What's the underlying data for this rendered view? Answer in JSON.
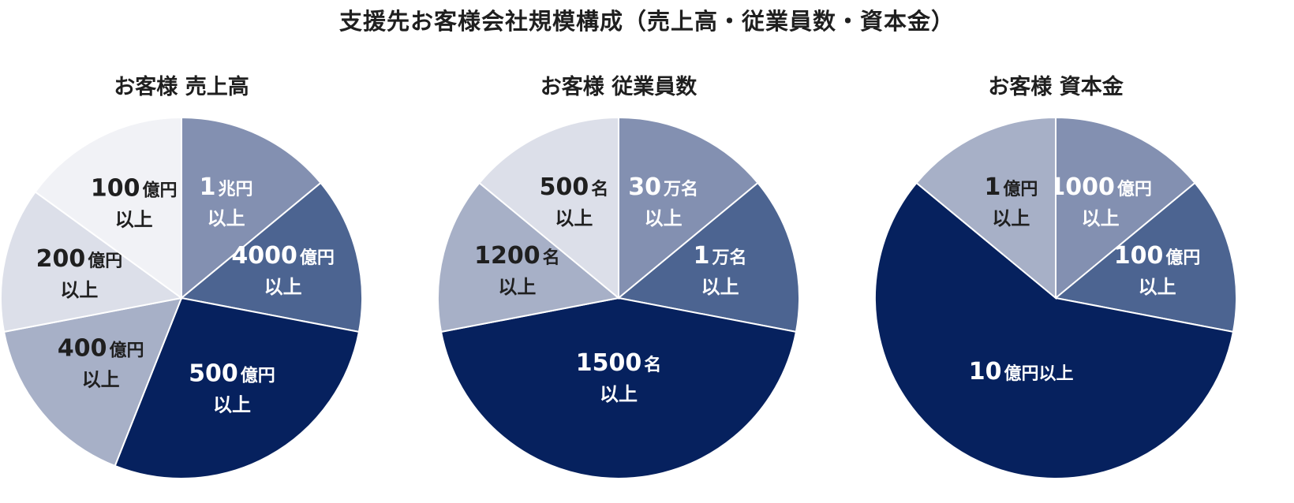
{
  "page_title": "支援先お客様会社規模構成（売上高・従業員数・資本金）",
  "chart_data": [
    {
      "type": "pie",
      "title": "お客様 売上高",
      "start_angle_deg": 0,
      "slices": [
        {
          "label": "1兆円以上",
          "num": "1",
          "unit": "兆円",
          "sub": "以上",
          "value": 14,
          "color": "#8390b1",
          "text_color": "#ffffff"
        },
        {
          "label": "4000億円以上",
          "num": "4000",
          "unit": "億円",
          "sub": "以上",
          "value": 14,
          "color": "#4c6491",
          "text_color": "#ffffff"
        },
        {
          "label": "500億円以上",
          "num": "500",
          "unit": "億円",
          "sub": "以上",
          "value": 28,
          "color": "#06215e",
          "text_color": "#ffffff"
        },
        {
          "label": "400億円以上",
          "num": "400",
          "unit": "億円",
          "sub": "以上",
          "value": 16,
          "color": "#a7b0c7",
          "text_color": "#1f1f1f"
        },
        {
          "label": "200億円以上",
          "num": "200",
          "unit": "億円",
          "sub": "以上",
          "value": 13,
          "color": "#dcdfe9",
          "text_color": "#1f1f1f"
        },
        {
          "label": "100億円以上",
          "num": "100",
          "unit": "億円",
          "sub": "以上",
          "value": 15,
          "color": "#f1f2f6",
          "text_color": "#1f1f1f"
        }
      ]
    },
    {
      "type": "pie",
      "title": "お客様 従業員数",
      "start_angle_deg": 0,
      "slices": [
        {
          "label": "30万名以上",
          "num": "30",
          "unit": "万名",
          "sub": "以上",
          "value": 14,
          "color": "#8390b1",
          "text_color": "#ffffff"
        },
        {
          "label": "1万名以上",
          "num": "1",
          "unit": "万名",
          "sub": "以上",
          "value": 14,
          "color": "#4c6491",
          "text_color": "#ffffff"
        },
        {
          "label": "1500名以上",
          "num": "1500",
          "unit": "名",
          "sub": "以上",
          "value": 44,
          "color": "#06215e",
          "text_color": "#ffffff"
        },
        {
          "label": "1200名以上",
          "num": "1200",
          "unit": "名",
          "sub": "以上",
          "value": 14,
          "color": "#a7b0c7",
          "text_color": "#1f1f1f"
        },
        {
          "label": "500名以上",
          "num": "500",
          "unit": "名",
          "sub": "以上",
          "value": 14,
          "color": "#dcdfe9",
          "text_color": "#1f1f1f"
        }
      ]
    },
    {
      "type": "pie",
      "title": "お客様 資本金",
      "start_angle_deg": 0,
      "slices": [
        {
          "label": "1000億円以上",
          "num": "1000",
          "unit": "億円",
          "sub": "以上",
          "value": 14,
          "color": "#8390b1",
          "text_color": "#ffffff"
        },
        {
          "label": "100億円以上",
          "num": "100",
          "unit": "億円",
          "sub": "以上",
          "value": 14,
          "color": "#4c6491",
          "text_color": "#ffffff"
        },
        {
          "label": "10億円以上",
          "num": "10",
          "unit": "億円以上",
          "sub": "",
          "value": 58,
          "color": "#06215e",
          "text_color": "#ffffff"
        },
        {
          "label": "1億円以上",
          "num": "1",
          "unit": "億円",
          "sub": "以上",
          "value": 14,
          "color": "#a7b0c7",
          "text_color": "#1f1f1f"
        }
      ]
    }
  ]
}
